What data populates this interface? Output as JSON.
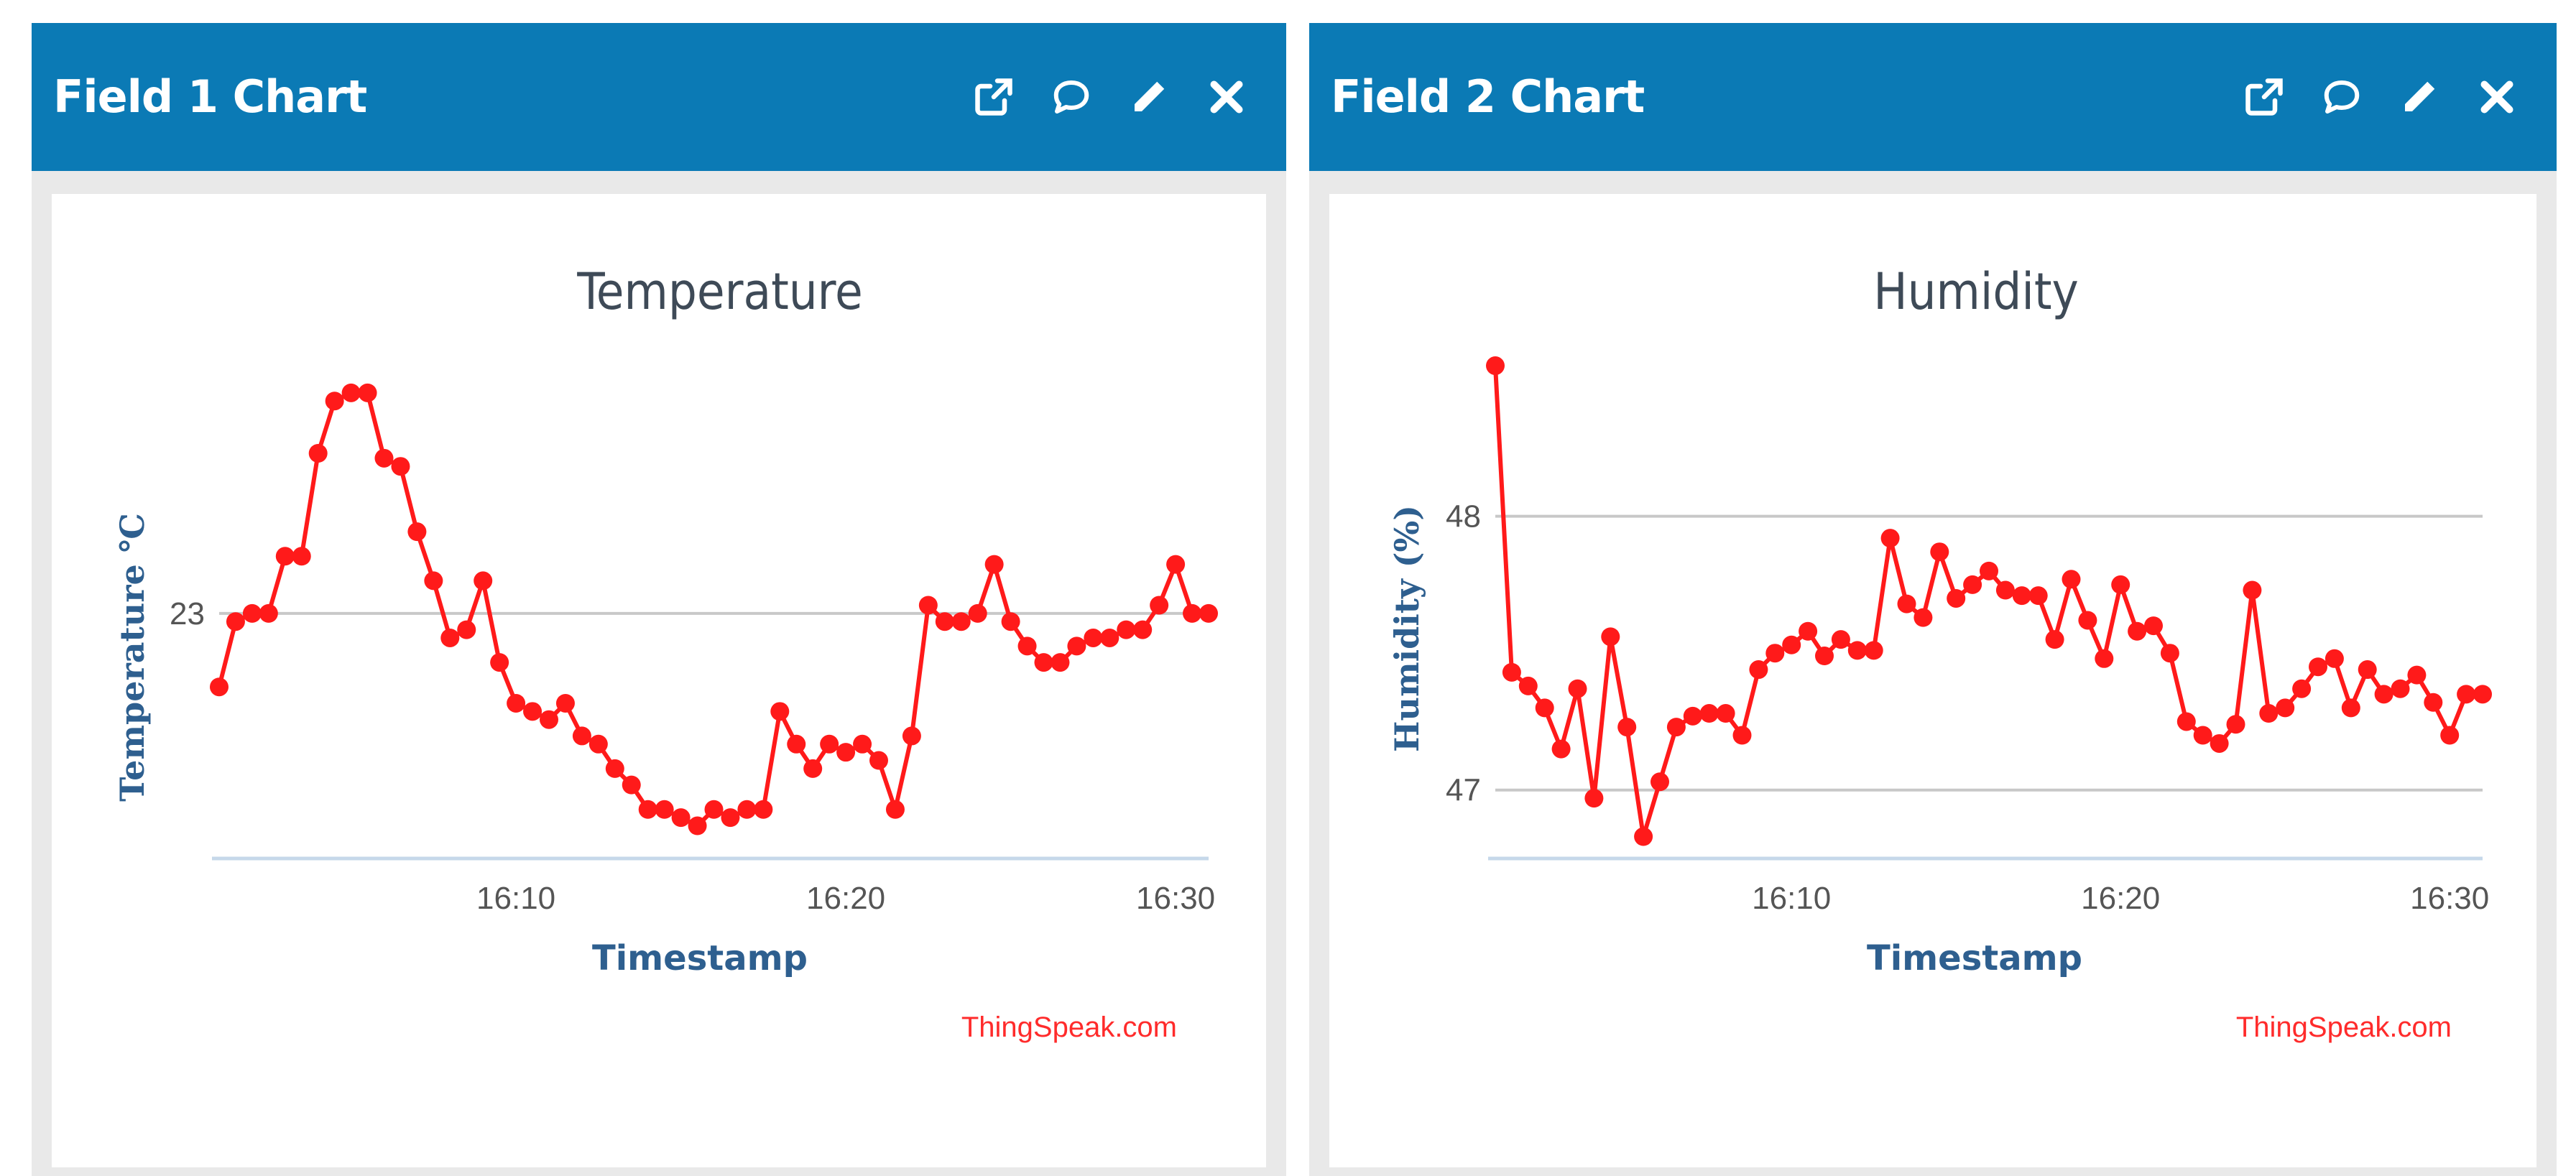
{
  "widgets": [
    {
      "title": "Field 1 Chart",
      "icons": [
        "external-link-icon",
        "comment-icon",
        "pencil-icon",
        "close-icon"
      ]
    },
    {
      "title": "Field 2 Chart",
      "icons": [
        "external-link-icon",
        "comment-icon",
        "pencil-icon",
        "close-icon"
      ]
    }
  ],
  "colors": {
    "header": "#0b7ab5",
    "series": "#ff1a1a",
    "axis_label": "#2e5f8f"
  },
  "chart_data": [
    {
      "type": "line",
      "title": "Temperature",
      "xlabel": "Timestamp",
      "ylabel": "Temperature ℃",
      "credit": "ThingSpeak.com",
      "x_ticks": [
        "16:10",
        "16:20",
        "16:30"
      ],
      "y_ticks": [
        23
      ],
      "ylim": [
        21.5,
        24.6
      ],
      "xlim_minutes": [
        "16:01",
        "16:31"
      ],
      "grid": true,
      "series": [
        {
          "x": [
            "16:01",
            "16:01:30",
            "16:02",
            "16:02:30",
            "16:03",
            "16:03:30",
            "16:04",
            "16:04:30",
            "16:05",
            "16:05:30",
            "16:06",
            "16:06:30",
            "16:07",
            "16:07:30",
            "16:08",
            "16:08:30",
            "16:09",
            "16:09:30",
            "16:10",
            "16:10:30",
            "16:11",
            "16:11:30",
            "16:12",
            "16:12:30",
            "16:13",
            "16:13:30",
            "16:14",
            "16:14:30",
            "16:15",
            "16:15:30",
            "16:16",
            "16:16:30",
            "16:17",
            "16:17:30",
            "16:18",
            "16:18:30",
            "16:19",
            "16:19:30",
            "16:20",
            "16:20:30",
            "16:21",
            "16:21:30",
            "16:22",
            "16:22:30",
            "16:23",
            "16:23:30",
            "16:24",
            "16:24:30",
            "16:25",
            "16:25:30",
            "16:26",
            "16:26:30",
            "16:27",
            "16:27:30",
            "16:28",
            "16:28:30",
            "16:29",
            "16:29:30",
            "16:30",
            "16:30:30",
            "16:31"
          ],
          "values": [
            22.55,
            22.95,
            23.0,
            23.0,
            23.35,
            23.35,
            23.98,
            24.3,
            24.35,
            24.35,
            23.95,
            23.9,
            23.5,
            23.2,
            22.85,
            22.9,
            23.2,
            22.7,
            22.45,
            22.4,
            22.35,
            22.45,
            22.25,
            22.2,
            22.05,
            21.95,
            21.8,
            21.8,
            21.75,
            21.7,
            21.8,
            21.75,
            21.8,
            21.8,
            22.4,
            22.2,
            22.05,
            22.2,
            22.15,
            22.2,
            22.1,
            21.8,
            22.25,
            23.05,
            22.95,
            22.95,
            23.0,
            23.3,
            22.95,
            22.8,
            22.7,
            22.7,
            22.8,
            22.85,
            22.85,
            22.9,
            22.9,
            23.05,
            23.3,
            23.0,
            23.0
          ]
        }
      ]
    },
    {
      "type": "line",
      "title": "Humidity",
      "xlabel": "Timestamp",
      "ylabel": "Humidity (%)",
      "credit": "ThingSpeak.com",
      "x_ticks": [
        "16:10",
        "16:20",
        "16:30"
      ],
      "y_ticks": [
        47,
        48
      ],
      "ylim": [
        46.75,
        48.6
      ],
      "xlim_minutes": [
        "16:01",
        "16:31"
      ],
      "grid": true,
      "series": [
        {
          "x": [
            "16:01",
            "16:01:30",
            "16:02",
            "16:02:30",
            "16:03",
            "16:03:30",
            "16:04",
            "16:04:30",
            "16:05",
            "16:05:30",
            "16:06",
            "16:06:30",
            "16:07",
            "16:07:30",
            "16:08",
            "16:08:30",
            "16:09",
            "16:09:30",
            "16:10",
            "16:10:30",
            "16:11",
            "16:11:30",
            "16:12",
            "16:12:30",
            "16:13",
            "16:13:30",
            "16:14",
            "16:14:30",
            "16:15",
            "16:15:30",
            "16:16",
            "16:16:30",
            "16:17",
            "16:17:30",
            "16:18",
            "16:18:30",
            "16:19",
            "16:19:30",
            "16:20",
            "16:20:30",
            "16:21",
            "16:21:30",
            "16:22",
            "16:22:30",
            "16:23",
            "16:23:30",
            "16:24",
            "16:24:30",
            "16:25",
            "16:25:30",
            "16:26",
            "16:26:30",
            "16:27",
            "16:27:30",
            "16:28",
            "16:28:30",
            "16:29",
            "16:29:30",
            "16:30",
            "16:30:30",
            "16:31"
          ],
          "values": [
            48.55,
            47.43,
            47.38,
            47.3,
            47.15,
            47.37,
            46.97,
            47.56,
            47.23,
            46.83,
            47.03,
            47.23,
            47.27,
            47.28,
            47.28,
            47.2,
            47.44,
            47.5,
            47.53,
            47.58,
            47.49,
            47.55,
            47.51,
            47.51,
            47.92,
            47.68,
            47.63,
            47.87,
            47.7,
            47.75,
            47.8,
            47.73,
            47.71,
            47.71,
            47.55,
            47.77,
            47.62,
            47.48,
            47.75,
            47.58,
            47.6,
            47.5,
            47.25,
            47.2,
            47.17,
            47.24,
            47.73,
            47.28,
            47.3,
            47.37,
            47.45,
            47.48,
            47.3,
            47.44,
            47.35,
            47.37,
            47.42,
            47.32,
            47.2,
            47.35,
            47.35
          ]
        }
      ]
    }
  ]
}
